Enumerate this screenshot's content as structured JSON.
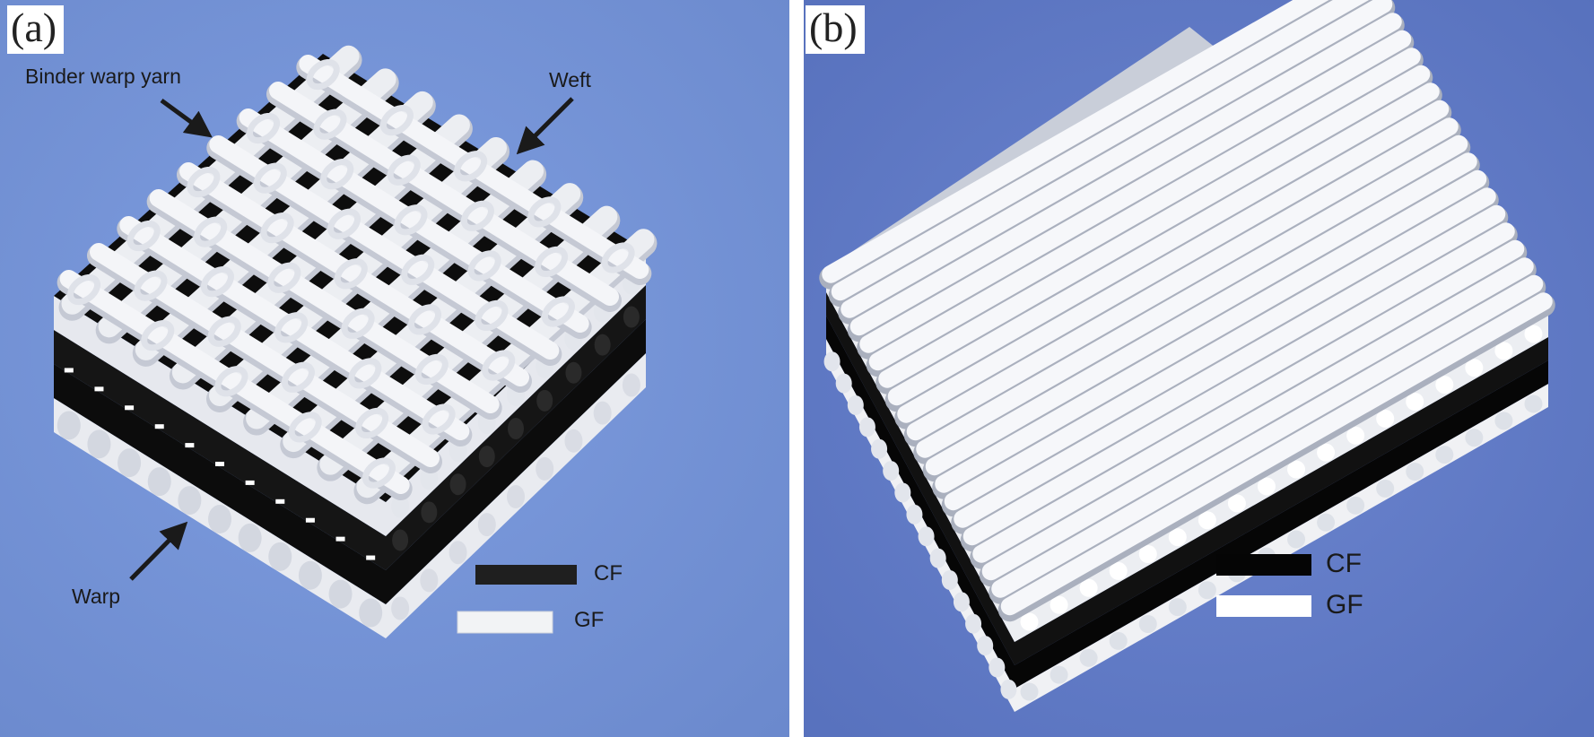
{
  "panel_a": {
    "tag": "(a)",
    "labels": {
      "binder": "Binder warp yarn",
      "weft": "Weft",
      "warp": "Warp"
    },
    "legend": [
      {
        "label": "CF",
        "color": "#1f1f1f"
      },
      {
        "label": "GF",
        "color": "#f2f3f5"
      }
    ],
    "background": "#6f8fd4"
  },
  "panel_b": {
    "tag": "(b)",
    "legend": [
      {
        "label": "CF",
        "color": "#050505"
      },
      {
        "label": "GF",
        "color": "#ffffff"
      }
    ],
    "background": "#5f79c6"
  },
  "colors": {
    "yarn": "#eceef2",
    "yarn_shadow": "#c5c9d4",
    "carbon": "#0c0c0c",
    "arrow": "#1a1a1a"
  }
}
